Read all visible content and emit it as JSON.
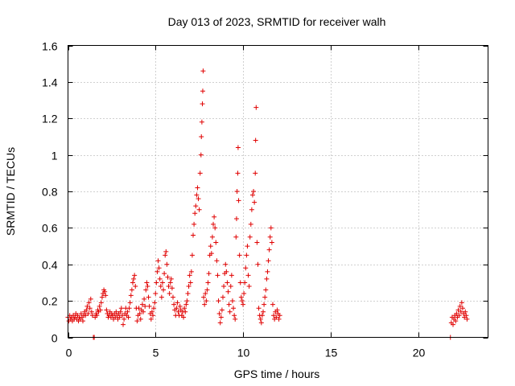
{
  "chart_data": {
    "type": "scatter",
    "title": "Day 013 of 2023, SRMTID for receiver walh",
    "xlabel": "GPS time / hours",
    "ylabel": "SRMTID / TECUs",
    "xlim": [
      0,
      24
    ],
    "ylim": [
      0,
      1.6
    ],
    "x_ticks": [
      0,
      5,
      10,
      15,
      20
    ],
    "x_tick_labels": [
      "0",
      "5",
      "10",
      "15",
      "20"
    ],
    "y_ticks": [
      0,
      0.2,
      0.4,
      0.6,
      0.8,
      1.0,
      1.2,
      1.4,
      1.6
    ],
    "y_tick_labels": [
      "0",
      "0.2",
      "0.4",
      "0.6",
      "0.8",
      "1",
      "1.2",
      "1.4",
      "1.6"
    ],
    "grid": true,
    "marker": "plus",
    "marker_color": "#e00000",
    "series": [
      {
        "name": "SRMTID",
        "points": [
          [
            0.0,
            0.11
          ],
          [
            0.05,
            0.09
          ],
          [
            0.1,
            0.12
          ],
          [
            0.15,
            0.1
          ],
          [
            0.2,
            0.11
          ],
          [
            0.25,
            0.09
          ],
          [
            0.3,
            0.12
          ],
          [
            0.35,
            0.1
          ],
          [
            0.4,
            0.11
          ],
          [
            0.45,
            0.13
          ],
          [
            0.5,
            0.1
          ],
          [
            0.55,
            0.12
          ],
          [
            0.6,
            0.09
          ],
          [
            0.65,
            0.11
          ],
          [
            0.7,
            0.1
          ],
          [
            0.75,
            0.13
          ],
          [
            0.8,
            0.11
          ],
          [
            0.85,
            0.09
          ],
          [
            0.9,
            0.12
          ],
          [
            0.95,
            0.14
          ],
          [
            1.0,
            0.12
          ],
          [
            1.05,
            0.15
          ],
          [
            1.1,
            0.17
          ],
          [
            1.15,
            0.13
          ],
          [
            1.2,
            0.19
          ],
          [
            1.25,
            0.16
          ],
          [
            1.3,
            0.21
          ],
          [
            1.35,
            0.14
          ],
          [
            1.4,
            0.12
          ],
          [
            1.45,
            0.0
          ],
          [
            1.5,
            0.0
          ],
          [
            1.55,
            0.11
          ],
          [
            1.6,
            0.13
          ],
          [
            1.65,
            0.12
          ],
          [
            1.7,
            0.15
          ],
          [
            1.75,
            0.14
          ],
          [
            1.8,
            0.17
          ],
          [
            1.85,
            0.15
          ],
          [
            1.9,
            0.19
          ],
          [
            1.95,
            0.22
          ],
          [
            2.0,
            0.24
          ],
          [
            2.05,
            0.26
          ],
          [
            2.1,
            0.25
          ],
          [
            2.15,
            0.23
          ],
          [
            2.2,
            0.15
          ],
          [
            2.25,
            0.13
          ],
          [
            2.3,
            0.11
          ],
          [
            2.35,
            0.12
          ],
          [
            2.4,
            0.14
          ],
          [
            2.45,
            0.11
          ],
          [
            2.5,
            0.13
          ],
          [
            2.55,
            0.12
          ],
          [
            2.6,
            0.1
          ],
          [
            2.65,
            0.13
          ],
          [
            2.7,
            0.11
          ],
          [
            2.75,
            0.14
          ],
          [
            2.8,
            0.12
          ],
          [
            2.85,
            0.1
          ],
          [
            2.9,
            0.13
          ],
          [
            2.95,
            0.11
          ],
          [
            3.0,
            0.14
          ],
          [
            3.05,
            0.16
          ],
          [
            3.1,
            0.12
          ],
          [
            3.15,
            0.07
          ],
          [
            3.2,
            0.1
          ],
          [
            3.25,
            0.13
          ],
          [
            3.3,
            0.16
          ],
          [
            3.35,
            0.12
          ],
          [
            3.4,
            0.14
          ],
          [
            3.45,
            0.11
          ],
          [
            3.5,
            0.16
          ],
          [
            3.55,
            0.19
          ],
          [
            3.6,
            0.23
          ],
          [
            3.65,
            0.26
          ],
          [
            3.7,
            0.3
          ],
          [
            3.75,
            0.32
          ],
          [
            3.8,
            0.34
          ],
          [
            3.85,
            0.28
          ],
          [
            3.9,
            0.16
          ],
          [
            3.95,
            0.09
          ],
          [
            4.0,
            0.12
          ],
          [
            4.05,
            0.16
          ],
          [
            4.1,
            0.13
          ],
          [
            4.15,
            0.1
          ],
          [
            4.2,
            0.15
          ],
          [
            4.25,
            0.18
          ],
          [
            4.3,
            0.14
          ],
          [
            4.35,
            0.21
          ],
          [
            4.4,
            0.17
          ],
          [
            4.45,
            0.26
          ],
          [
            4.5,
            0.3
          ],
          [
            4.55,
            0.28
          ],
          [
            4.6,
            0.22
          ],
          [
            4.65,
            0.17
          ],
          [
            4.7,
            0.13
          ],
          [
            4.75,
            0.1
          ],
          [
            4.8,
            0.14
          ],
          [
            4.85,
            0.12
          ],
          [
            4.9,
            0.16
          ],
          [
            4.95,
            0.19
          ],
          [
            5.0,
            0.24
          ],
          [
            5.05,
            0.3
          ],
          [
            5.1,
            0.36
          ],
          [
            5.15,
            0.42
          ],
          [
            5.2,
            0.38
          ],
          [
            5.25,
            0.32
          ],
          [
            5.3,
            0.28
          ],
          [
            5.35,
            0.22
          ],
          [
            5.4,
            0.3
          ],
          [
            5.45,
            0.26
          ],
          [
            5.5,
            0.35
          ],
          [
            5.55,
            0.45
          ],
          [
            5.6,
            0.47
          ],
          [
            5.65,
            0.4
          ],
          [
            5.7,
            0.33
          ],
          [
            5.75,
            0.28
          ],
          [
            5.8,
            0.24
          ],
          [
            5.85,
            0.3
          ],
          [
            5.9,
            0.32
          ],
          [
            5.95,
            0.27
          ],
          [
            6.0,
            0.22
          ],
          [
            6.05,
            0.18
          ],
          [
            6.1,
            0.15
          ],
          [
            6.15,
            0.12
          ],
          [
            6.2,
            0.16
          ],
          [
            6.25,
            0.19
          ],
          [
            6.3,
            0.14
          ],
          [
            6.35,
            0.12
          ],
          [
            6.4,
            0.17
          ],
          [
            6.45,
            0.15
          ],
          [
            6.5,
            0.12
          ],
          [
            6.55,
            0.14
          ],
          [
            6.6,
            0.11
          ],
          [
            6.65,
            0.16
          ],
          [
            6.7,
            0.14
          ],
          [
            6.75,
            0.18
          ],
          [
            6.8,
            0.2
          ],
          [
            6.85,
            0.24
          ],
          [
            6.9,
            0.28
          ],
          [
            6.95,
            0.34
          ],
          [
            7.0,
            0.3
          ],
          [
            7.05,
            0.36
          ],
          [
            7.1,
            0.45
          ],
          [
            7.15,
            0.56
          ],
          [
            7.2,
            0.62
          ],
          [
            7.25,
            0.68
          ],
          [
            7.3,
            0.72
          ],
          [
            7.35,
            0.78
          ],
          [
            7.4,
            0.82
          ],
          [
            7.45,
            0.76
          ],
          [
            7.5,
            0.7
          ],
          [
            7.55,
            0.9
          ],
          [
            7.6,
            1.0
          ],
          [
            7.62,
            1.1
          ],
          [
            7.65,
            1.18
          ],
          [
            7.68,
            1.28
          ],
          [
            7.7,
            1.35
          ],
          [
            7.72,
            1.46
          ],
          [
            7.75,
            0.22
          ],
          [
            7.8,
            0.18
          ],
          [
            7.85,
            0.24
          ],
          [
            7.9,
            0.2
          ],
          [
            7.95,
            0.26
          ],
          [
            8.0,
            0.3
          ],
          [
            8.05,
            0.35
          ],
          [
            8.1,
            0.45
          ],
          [
            8.15,
            0.5
          ],
          [
            8.2,
            0.46
          ],
          [
            8.25,
            0.55
          ],
          [
            8.3,
            0.62
          ],
          [
            8.35,
            0.66
          ],
          [
            8.4,
            0.6
          ],
          [
            8.45,
            0.52
          ],
          [
            8.5,
            0.42
          ],
          [
            8.55,
            0.34
          ],
          [
            8.6,
            0.2
          ],
          [
            8.65,
            0.13
          ],
          [
            8.7,
            0.08
          ],
          [
            8.75,
            0.11
          ],
          [
            8.8,
            0.15
          ],
          [
            8.85,
            0.22
          ],
          [
            8.9,
            0.28
          ],
          [
            8.95,
            0.35
          ],
          [
            9.0,
            0.4
          ],
          [
            9.05,
            0.36
          ],
          [
            9.1,
            0.3
          ],
          [
            9.15,
            0.25
          ],
          [
            9.2,
            0.18
          ],
          [
            9.25,
            0.14
          ],
          [
            9.3,
            0.28
          ],
          [
            9.35,
            0.34
          ],
          [
            9.4,
            0.2
          ],
          [
            9.45,
            0.16
          ],
          [
            9.5,
            0.12
          ],
          [
            9.55,
            0.1
          ],
          [
            9.6,
            0.55
          ],
          [
            9.63,
            0.65
          ],
          [
            9.66,
            0.8
          ],
          [
            9.7,
            0.9
          ],
          [
            9.72,
            1.04
          ],
          [
            9.75,
            0.75
          ],
          [
            9.8,
            0.45
          ],
          [
            9.85,
            0.3
          ],
          [
            9.9,
            0.22
          ],
          [
            9.95,
            0.2
          ],
          [
            10.0,
            0.18
          ],
          [
            10.05,
            0.24
          ],
          [
            10.1,
            0.3
          ],
          [
            10.15,
            0.38
          ],
          [
            10.2,
            0.45
          ],
          [
            10.25,
            0.5
          ],
          [
            10.3,
            0.34
          ],
          [
            10.35,
            0.28
          ],
          [
            10.4,
            0.55
          ],
          [
            10.45,
            0.62
          ],
          [
            10.5,
            0.7
          ],
          [
            10.55,
            0.78
          ],
          [
            10.6,
            0.8
          ],
          [
            10.65,
            0.74
          ],
          [
            10.7,
            0.9
          ],
          [
            10.72,
            1.08
          ],
          [
            10.75,
            1.26
          ],
          [
            10.8,
            0.52
          ],
          [
            10.85,
            0.4
          ],
          [
            10.9,
            0.16
          ],
          [
            10.95,
            0.12
          ],
          [
            11.0,
            0.1
          ],
          [
            11.05,
            0.08
          ],
          [
            11.1,
            0.12
          ],
          [
            11.15,
            0.14
          ],
          [
            11.2,
            0.18
          ],
          [
            11.25,
            0.22
          ],
          [
            11.3,
            0.26
          ],
          [
            11.35,
            0.32
          ],
          [
            11.4,
            0.36
          ],
          [
            11.45,
            0.42
          ],
          [
            11.5,
            0.48
          ],
          [
            11.55,
            0.55
          ],
          [
            11.6,
            0.6
          ],
          [
            11.65,
            0.52
          ],
          [
            11.7,
            0.18
          ],
          [
            11.75,
            0.12
          ],
          [
            11.8,
            0.1
          ],
          [
            11.85,
            0.14
          ],
          [
            11.9,
            0.11
          ],
          [
            11.95,
            0.15
          ],
          [
            12.0,
            0.13
          ],
          [
            12.05,
            0.1
          ],
          [
            12.1,
            0.12
          ],
          [
            21.85,
            0.0
          ],
          [
            21.9,
            0.08
          ],
          [
            21.95,
            0.11
          ],
          [
            22.0,
            0.07
          ],
          [
            22.05,
            0.1
          ],
          [
            22.1,
            0.12
          ],
          [
            22.15,
            0.09
          ],
          [
            22.2,
            0.13
          ],
          [
            22.25,
            0.11
          ],
          [
            22.3,
            0.15
          ],
          [
            22.35,
            0.12
          ],
          [
            22.4,
            0.17
          ],
          [
            22.45,
            0.14
          ],
          [
            22.5,
            0.19
          ],
          [
            22.55,
            0.16
          ],
          [
            22.6,
            0.13
          ],
          [
            22.65,
            0.11
          ],
          [
            22.7,
            0.14
          ],
          [
            22.75,
            0.12
          ],
          [
            22.8,
            0.1
          ]
        ]
      }
    ]
  }
}
